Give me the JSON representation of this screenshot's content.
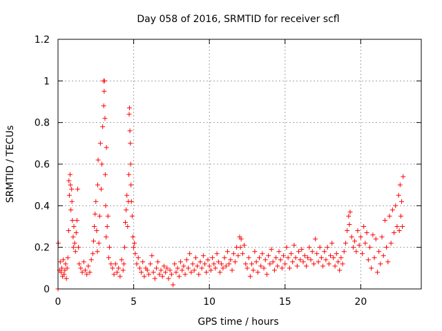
{
  "chart_data": {
    "type": "scatter",
    "title": "Day 058 of 2016, SRMTID for receiver scfl",
    "xlabel": "GPS time / hours",
    "ylabel": "SRMTID / TECUs",
    "xlim": [
      0,
      24
    ],
    "ylim": [
      0,
      1.2
    ],
    "xticks": [
      0,
      5,
      10,
      15,
      20
    ],
    "xtick_labels": [
      "0",
      "5",
      "10",
      "15",
      "20"
    ],
    "yticks": [
      0,
      0.2,
      0.4,
      0.6,
      0.8,
      1.0,
      1.2
    ],
    "ytick_labels": [
      "0",
      "0.2",
      "0.4",
      "0.6",
      "0.8",
      "1",
      "1.2"
    ],
    "grid": true,
    "marker": "+",
    "series_color": "#ff0000",
    "series": [
      {
        "name": "SRMTID",
        "points": [
          [
            0.0,
            0.0
          ],
          [
            0.02,
            0.22
          ],
          [
            0.1,
            0.09
          ],
          [
            0.15,
            0.13
          ],
          [
            0.2,
            0.08
          ],
          [
            0.25,
            0.1
          ],
          [
            0.3,
            0.06
          ],
          [
            0.35,
            0.14
          ],
          [
            0.4,
            0.07
          ],
          [
            0.45,
            0.09
          ],
          [
            0.5,
            0.12
          ],
          [
            0.55,
            0.05
          ],
          [
            0.6,
            0.1
          ],
          [
            0.65,
            0.15
          ],
          [
            0.7,
            0.28
          ],
          [
            0.72,
            0.52
          ],
          [
            0.75,
            0.45
          ],
          [
            0.8,
            0.55
          ],
          [
            0.82,
            0.5
          ],
          [
            0.85,
            0.38
          ],
          [
            0.9,
            0.48
          ],
          [
            0.92,
            0.42
          ],
          [
            0.95,
            0.33
          ],
          [
            1.0,
            0.25
          ],
          [
            1.02,
            0.2
          ],
          [
            1.05,
            0.3
          ],
          [
            1.1,
            0.22
          ],
          [
            1.15,
            0.18
          ],
          [
            1.2,
            0.27
          ],
          [
            1.25,
            0.33
          ],
          [
            1.3,
            0.48
          ],
          [
            1.35,
            0.2
          ],
          [
            1.4,
            0.12
          ],
          [
            1.5,
            0.1
          ],
          [
            1.6,
            0.08
          ],
          [
            1.7,
            0.13
          ],
          [
            1.8,
            0.09
          ],
          [
            1.9,
            0.07
          ],
          [
            2.0,
            0.11
          ],
          [
            2.1,
            0.08
          ],
          [
            2.2,
            0.14
          ],
          [
            2.3,
            0.17
          ],
          [
            2.35,
            0.23
          ],
          [
            2.4,
            0.3
          ],
          [
            2.45,
            0.36
          ],
          [
            2.5,
            0.42
          ],
          [
            2.55,
            0.28
          ],
          [
            2.6,
            0.18
          ],
          [
            2.62,
            0.5
          ],
          [
            2.65,
            0.62
          ],
          [
            2.7,
            0.22
          ],
          [
            2.75,
            0.35
          ],
          [
            2.8,
            0.7
          ],
          [
            2.85,
            0.48
          ],
          [
            2.9,
            0.6
          ],
          [
            2.95,
            0.78
          ],
          [
            3.0,
            1.0
          ],
          [
            3.02,
            0.88
          ],
          [
            3.05,
            0.95
          ],
          [
            3.08,
            1.0
          ],
          [
            3.1,
            0.82
          ],
          [
            3.12,
            0.55
          ],
          [
            3.15,
            0.4
          ],
          [
            3.18,
            0.25
          ],
          [
            3.2,
            0.68
          ],
          [
            3.25,
            0.3
          ],
          [
            3.3,
            0.35
          ],
          [
            3.35,
            0.15
          ],
          [
            3.4,
            0.2
          ],
          [
            3.5,
            0.12
          ],
          [
            3.6,
            0.1
          ],
          [
            3.7,
            0.07
          ],
          [
            3.8,
            0.12
          ],
          [
            3.9,
            0.08
          ],
          [
            4.0,
            0.1
          ],
          [
            4.1,
            0.06
          ],
          [
            4.2,
            0.14
          ],
          [
            4.3,
            0.09
          ],
          [
            4.35,
            0.12
          ],
          [
            4.4,
            0.2
          ],
          [
            4.45,
            0.32
          ],
          [
            4.5,
            0.38
          ],
          [
            4.55,
            0.45
          ],
          [
            4.6,
            0.3
          ],
          [
            4.65,
            0.42
          ],
          [
            4.68,
            0.55
          ],
          [
            4.7,
            0.84
          ],
          [
            4.72,
            0.87
          ],
          [
            4.75,
            0.76
          ],
          [
            4.78,
            0.7
          ],
          [
            4.8,
            0.6
          ],
          [
            4.82,
            0.5
          ],
          [
            4.85,
            0.42
          ],
          [
            4.9,
            0.35
          ],
          [
            4.95,
            0.25
          ],
          [
            5.0,
            0.2
          ],
          [
            5.05,
            0.22
          ],
          [
            5.1,
            0.17
          ],
          [
            5.2,
            0.12
          ],
          [
            5.3,
            0.15
          ],
          [
            5.4,
            0.1
          ],
          [
            5.5,
            0.08
          ],
          [
            5.6,
            0.13
          ],
          [
            5.7,
            0.06
          ],
          [
            5.8,
            0.1
          ],
          [
            5.9,
            0.09
          ],
          [
            6.0,
            0.07
          ],
          [
            6.1,
            0.12
          ],
          [
            6.2,
            0.16
          ],
          [
            6.3,
            0.08
          ],
          [
            6.4,
            0.05
          ],
          [
            6.5,
            0.1
          ],
          [
            6.6,
            0.13
          ],
          [
            6.7,
            0.07
          ],
          [
            6.8,
            0.09
          ],
          [
            6.9,
            0.06
          ],
          [
            7.0,
            0.11
          ],
          [
            7.1,
            0.08
          ],
          [
            7.2,
            0.1
          ],
          [
            7.3,
            0.05
          ],
          [
            7.4,
            0.09
          ],
          [
            7.5,
            0.07
          ],
          [
            7.6,
            0.02
          ],
          [
            7.7,
            0.12
          ],
          [
            7.8,
            0.08
          ],
          [
            7.9,
            0.1
          ],
          [
            8.0,
            0.06
          ],
          [
            8.1,
            0.13
          ],
          [
            8.2,
            0.09
          ],
          [
            8.3,
            0.11
          ],
          [
            8.4,
            0.07
          ],
          [
            8.5,
            0.14
          ],
          [
            8.6,
            0.1
          ],
          [
            8.7,
            0.17
          ],
          [
            8.8,
            0.08
          ],
          [
            8.9,
            0.12
          ],
          [
            9.0,
            0.09
          ],
          [
            9.1,
            0.15
          ],
          [
            9.2,
            0.11
          ],
          [
            9.3,
            0.07
          ],
          [
            9.4,
            0.13
          ],
          [
            9.5,
            0.1
          ],
          [
            9.6,
            0.16
          ],
          [
            9.7,
            0.12
          ],
          [
            9.8,
            0.08
          ],
          [
            9.9,
            0.14
          ],
          [
            10.0,
            0.11
          ],
          [
            10.1,
            0.09
          ],
          [
            10.2,
            0.15
          ],
          [
            10.3,
            0.12
          ],
          [
            10.4,
            0.1
          ],
          [
            10.5,
            0.17
          ],
          [
            10.6,
            0.13
          ],
          [
            10.7,
            0.08
          ],
          [
            10.8,
            0.12
          ],
          [
            10.9,
            0.1
          ],
          [
            11.0,
            0.15
          ],
          [
            11.1,
            0.11
          ],
          [
            11.2,
            0.18
          ],
          [
            11.3,
            0.12
          ],
          [
            11.4,
            0.14
          ],
          [
            11.5,
            0.09
          ],
          [
            11.6,
            0.17
          ],
          [
            11.7,
            0.13
          ],
          [
            11.8,
            0.2
          ],
          [
            11.9,
            0.16
          ],
          [
            12.0,
            0.25
          ],
          [
            12.05,
            0.2
          ],
          [
            12.1,
            0.24
          ],
          [
            12.2,
            0.17
          ],
          [
            12.3,
            0.21
          ],
          [
            12.4,
            0.12
          ],
          [
            12.5,
            0.1
          ],
          [
            12.6,
            0.15
          ],
          [
            12.7,
            0.06
          ],
          [
            12.8,
            0.12
          ],
          [
            12.9,
            0.09
          ],
          [
            13.0,
            0.18
          ],
          [
            13.1,
            0.13
          ],
          [
            13.2,
            0.08
          ],
          [
            13.3,
            0.15
          ],
          [
            13.4,
            0.11
          ],
          [
            13.5,
            0.17
          ],
          [
            13.6,
            0.1
          ],
          [
            13.7,
            0.14
          ],
          [
            13.8,
            0.07
          ],
          [
            13.9,
            0.16
          ],
          [
            14.0,
            0.12
          ],
          [
            14.1,
            0.19
          ],
          [
            14.2,
            0.13
          ],
          [
            14.3,
            0.09
          ],
          [
            14.4,
            0.15
          ],
          [
            14.5,
            0.11
          ],
          [
            14.6,
            0.18
          ],
          [
            14.7,
            0.14
          ],
          [
            14.8,
            0.1
          ],
          [
            14.9,
            0.16
          ],
          [
            15.0,
            0.12
          ],
          [
            15.1,
            0.2
          ],
          [
            15.2,
            0.15
          ],
          [
            15.3,
            0.1
          ],
          [
            15.4,
            0.17
          ],
          [
            15.5,
            0.13
          ],
          [
            15.6,
            0.21
          ],
          [
            15.7,
            0.15
          ],
          [
            15.8,
            0.11
          ],
          [
            15.9,
            0.18
          ],
          [
            16.0,
            0.14
          ],
          [
            16.1,
            0.19
          ],
          [
            16.2,
            0.13
          ],
          [
            16.3,
            0.16
          ],
          [
            16.4,
            0.11
          ],
          [
            16.5,
            0.15
          ],
          [
            16.6,
            0.2
          ],
          [
            16.7,
            0.14
          ],
          [
            16.8,
            0.18
          ],
          [
            16.9,
            0.12
          ],
          [
            17.0,
            0.24
          ],
          [
            17.1,
            0.17
          ],
          [
            17.2,
            0.13
          ],
          [
            17.3,
            0.2
          ],
          [
            17.4,
            0.15
          ],
          [
            17.5,
            0.11
          ],
          [
            17.6,
            0.18
          ],
          [
            17.7,
            0.14
          ],
          [
            17.8,
            0.2
          ],
          [
            17.9,
            0.12
          ],
          [
            18.0,
            0.16
          ],
          [
            18.1,
            0.22
          ],
          [
            18.2,
            0.15
          ],
          [
            18.3,
            0.11
          ],
          [
            18.4,
            0.17
          ],
          [
            18.5,
            0.13
          ],
          [
            18.6,
            0.09
          ],
          [
            18.7,
            0.15
          ],
          [
            18.8,
            0.12
          ],
          [
            18.9,
            0.18
          ],
          [
            19.0,
            0.22
          ],
          [
            19.1,
            0.28
          ],
          [
            19.2,
            0.35
          ],
          [
            19.25,
            0.31
          ],
          [
            19.3,
            0.37
          ],
          [
            19.4,
            0.25
          ],
          [
            19.5,
            0.2
          ],
          [
            19.6,
            0.23
          ],
          [
            19.7,
            0.18
          ],
          [
            19.8,
            0.28
          ],
          [
            19.9,
            0.21
          ],
          [
            20.0,
            0.25
          ],
          [
            20.1,
            0.17
          ],
          [
            20.2,
            0.3
          ],
          [
            20.3,
            0.22
          ],
          [
            20.4,
            0.27
          ],
          [
            20.5,
            0.14
          ],
          [
            20.6,
            0.2
          ],
          [
            20.7,
            0.1
          ],
          [
            20.8,
            0.26
          ],
          [
            20.9,
            0.15
          ],
          [
            21.0,
            0.24
          ],
          [
            21.1,
            0.08
          ],
          [
            21.2,
            0.18
          ],
          [
            21.3,
            0.12
          ],
          [
            21.4,
            0.25
          ],
          [
            21.5,
            0.16
          ],
          [
            21.6,
            0.33
          ],
          [
            21.7,
            0.2
          ],
          [
            21.8,
            0.13
          ],
          [
            21.9,
            0.35
          ],
          [
            22.0,
            0.22
          ],
          [
            22.1,
            0.38
          ],
          [
            22.2,
            0.27
          ],
          [
            22.3,
            0.4
          ],
          [
            22.4,
            0.3
          ],
          [
            22.5,
            0.45
          ],
          [
            22.55,
            0.28
          ],
          [
            22.6,
            0.5
          ],
          [
            22.65,
            0.35
          ],
          [
            22.7,
            0.42
          ],
          [
            22.75,
            0.3
          ],
          [
            22.8,
            0.54
          ]
        ]
      }
    ]
  }
}
